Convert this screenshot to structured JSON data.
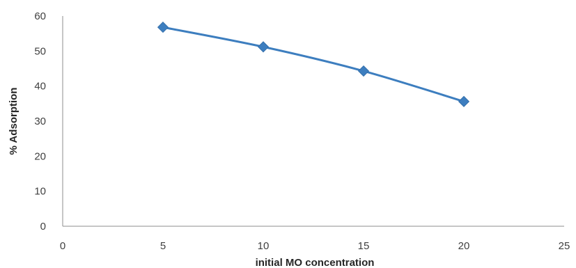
{
  "chart_data": {
    "type": "line",
    "title": "",
    "xlabel": "initial MO concentration",
    "ylabel": "% Adsorption",
    "xlim": [
      0,
      25
    ],
    "ylim": [
      0,
      60
    ],
    "x_ticks": [
      "0",
      "5",
      "10",
      "15",
      "20",
      "25"
    ],
    "y_ticks": [
      "0",
      "10",
      "20",
      "30",
      "40",
      "50",
      "60"
    ],
    "grid": false,
    "legend": "none",
    "smooth": true,
    "marker": "diamond",
    "series": [
      {
        "color": "#3d7ebf",
        "x": [
          5,
          10,
          15,
          20
        ],
        "y": [
          56.8,
          51.2,
          44.3,
          35.6
        ]
      }
    ]
  }
}
